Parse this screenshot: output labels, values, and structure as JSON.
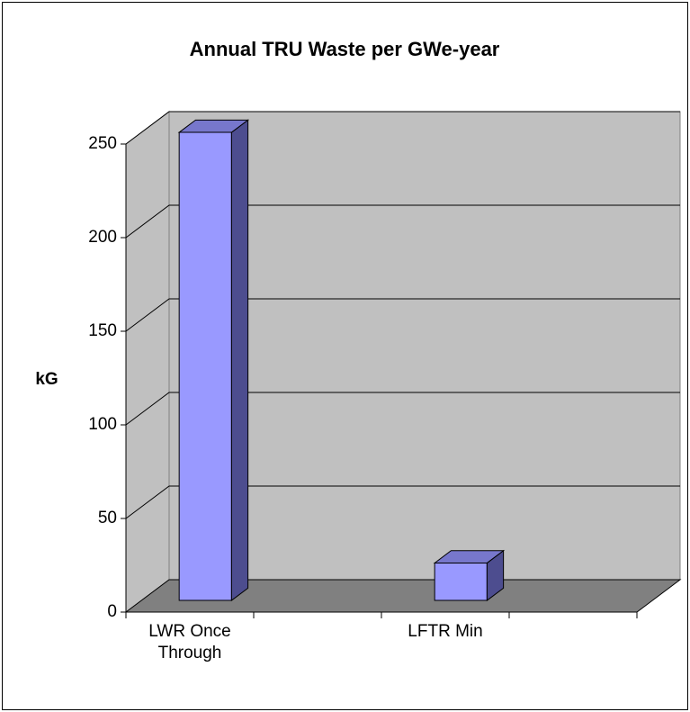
{
  "chart_data": {
    "type": "bar3d",
    "title": "Annual TRU Waste per GWe-year",
    "y_label": "kG",
    "categories": [
      "LWR Once Through",
      null,
      "LFTR Min",
      null
    ],
    "values": [
      250,
      null,
      20,
      null
    ],
    "color": "#9999ff",
    "ylim": [
      0,
      250
    ],
    "yticks": [
      0,
      50,
      100,
      150,
      200,
      250
    ],
    "grid": true
  }
}
